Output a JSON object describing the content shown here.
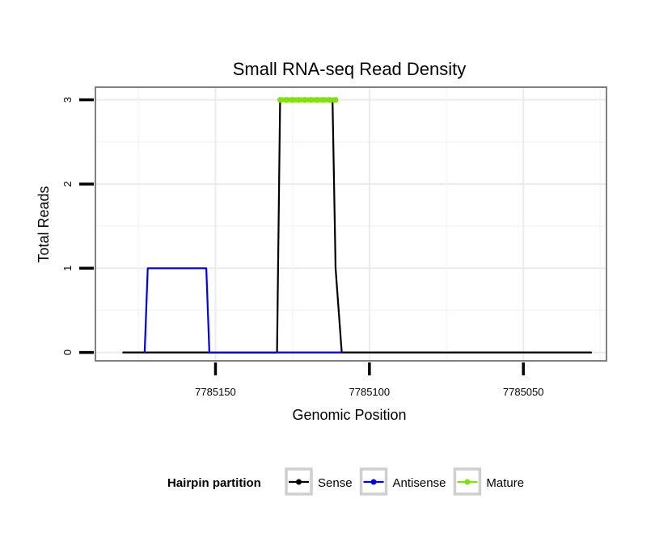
{
  "chart_data": {
    "type": "line",
    "title": "Small RNA-seq Read Density",
    "xlabel": "Genomic Position",
    "ylabel": "Total Reads",
    "x_reversed": true,
    "xlim": [
      7785023,
      7785189
    ],
    "ylim": [
      -0.1,
      3.15
    ],
    "x_ticks": [
      7785150,
      7785100,
      7785050
    ],
    "y_ticks": [
      0,
      1,
      2,
      3
    ],
    "grid": true,
    "legend_position": "bottom",
    "legend_title": "Hairpin partition",
    "series": [
      {
        "name": "Sense",
        "color": "#000000",
        "points": [
          [
            7785180,
            0
          ],
          [
            7785130,
            0
          ],
          [
            7785129,
            3
          ],
          [
            7785112,
            3
          ],
          [
            7785111,
            1
          ],
          [
            7785109,
            0
          ],
          [
            7785028,
            0
          ]
        ]
      },
      {
        "name": "Antisense",
        "color": "#0000ee",
        "points": [
          [
            7785173,
            0
          ],
          [
            7785172,
            1
          ],
          [
            7785153,
            1
          ],
          [
            7785152,
            0
          ],
          [
            7785130,
            0
          ],
          [
            7785109,
            0
          ]
        ]
      },
      {
        "name": "Mature",
        "color": "#7fe00a",
        "marker": true,
        "points": [
          [
            7785129,
            3
          ],
          [
            7785127,
            3
          ],
          [
            7785125,
            3
          ],
          [
            7785123,
            3
          ],
          [
            7785121,
            3
          ],
          [
            7785119,
            3
          ],
          [
            7785117,
            3
          ],
          [
            7785115,
            3
          ],
          [
            7785113,
            3
          ],
          [
            7785111,
            3
          ]
        ]
      }
    ]
  }
}
